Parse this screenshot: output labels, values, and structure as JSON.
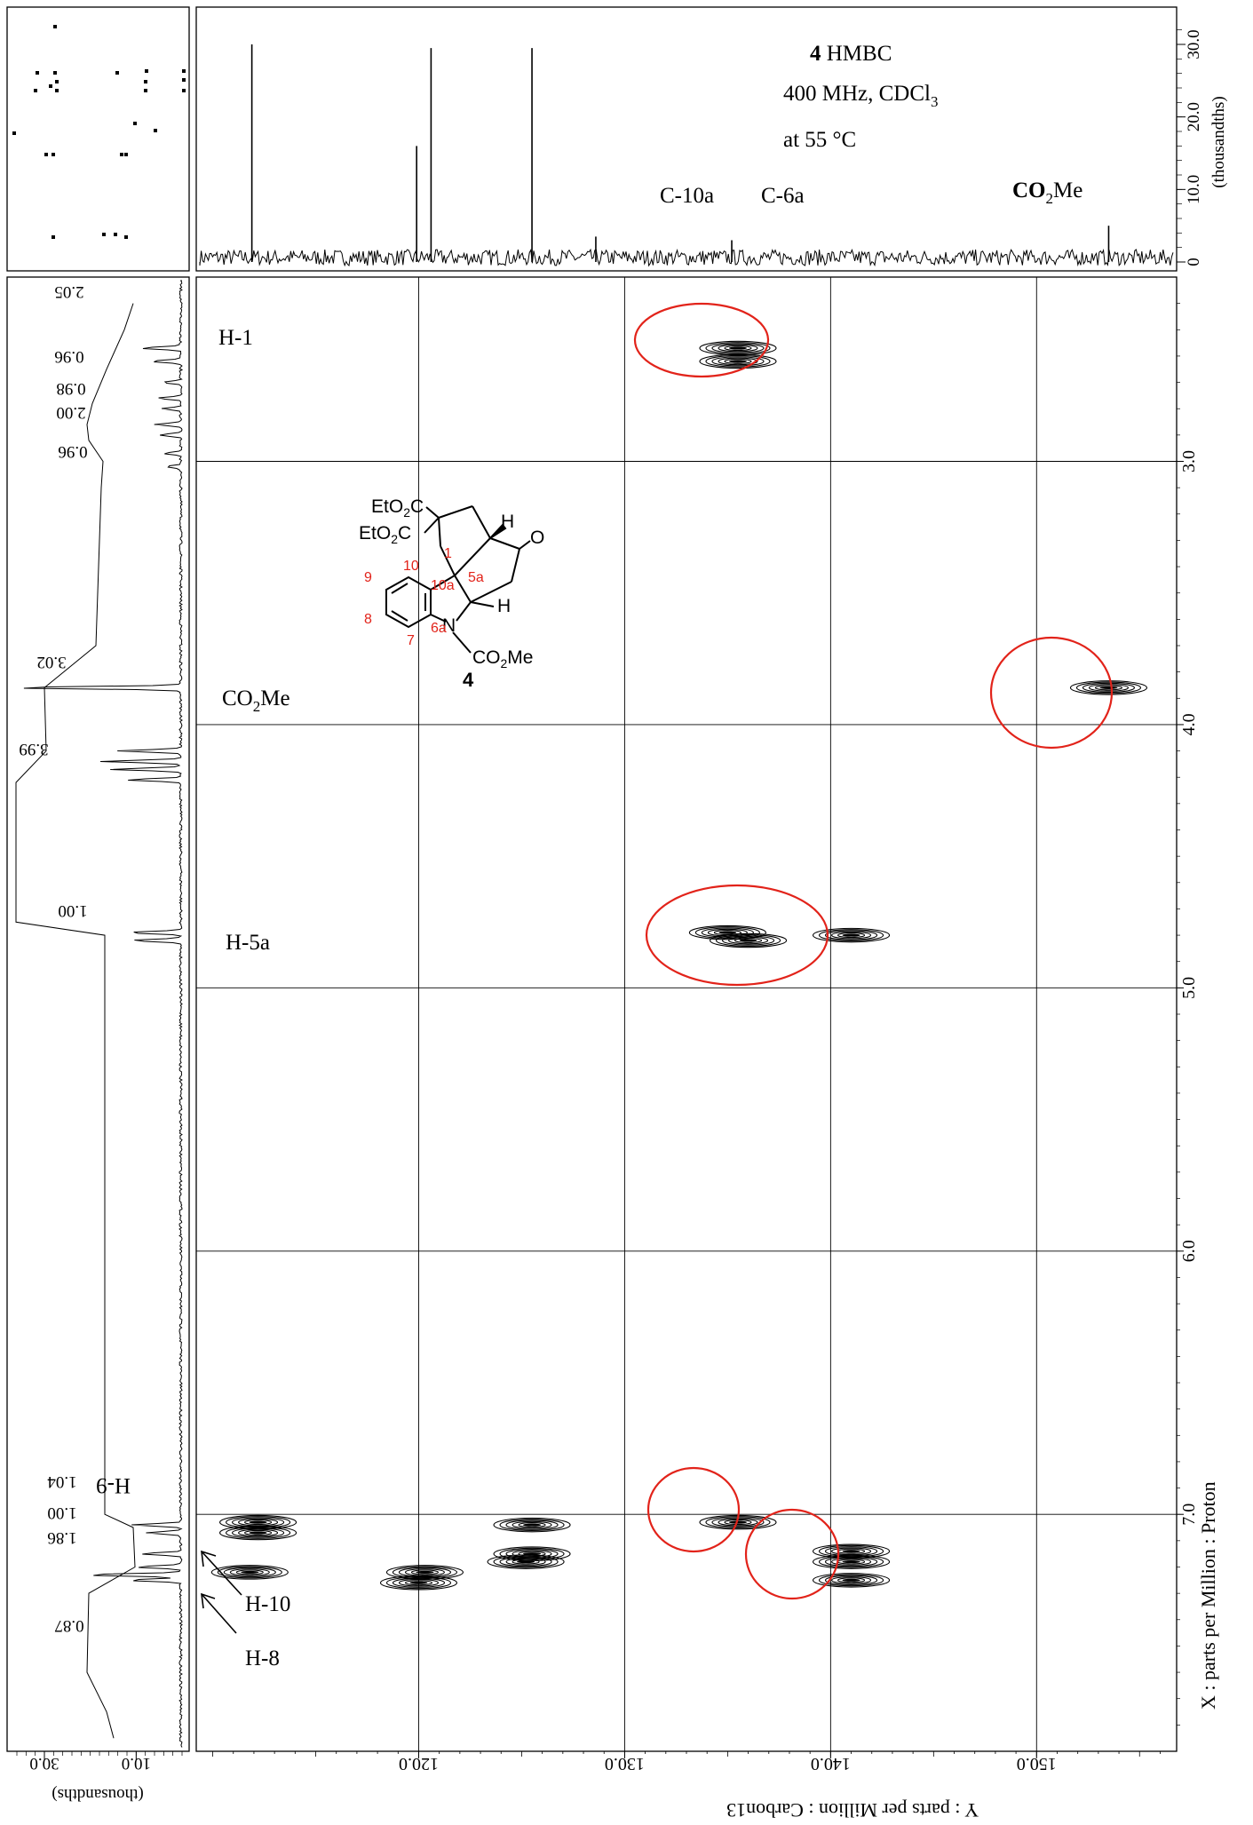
{
  "chart_data": {
    "type": "heatmap",
    "title": {
      "compound_number": "4",
      "experiment": "HMBC",
      "field": "400 MHz, CDCl",
      "field_sub": "3",
      "temperature": "at 55 °C"
    },
    "x_axis": {
      "label": "Y : parts per Million : Carbon13",
      "ticks": [
        {
          "value": 120,
          "label": "120.0"
        },
        {
          "value": 130,
          "label": "130.0"
        },
        {
          "value": 140,
          "label": "140.0"
        },
        {
          "value": 150,
          "label": "150.0"
        }
      ],
      "range": [
        109.2,
        156.8
      ],
      "reversed_print": true
    },
    "y_axis": {
      "label": "X : parts per Million : Proton",
      "ticks": [
        {
          "value": 3.0,
          "label": "3.0"
        },
        {
          "value": 4.0,
          "label": "4.0"
        },
        {
          "value": 5.0,
          "label": "5.0"
        },
        {
          "value": 6.0,
          "label": "6.0"
        },
        {
          "value": 7.0,
          "label": "7.0"
        }
      ],
      "range": [
        2.3,
        7.9
      ]
    },
    "top_projection": {
      "axis_label": "(thousandths)",
      "ticks": [
        {
          "value": 0,
          "label": "0"
        },
        {
          "value": 10,
          "label": "10.0"
        },
        {
          "value": 20,
          "label": "20.0"
        },
        {
          "value": 30,
          "label": "30.0"
        }
      ],
      "peaks": [
        {
          "x": 111.9,
          "height": 30
        },
        {
          "x": 119.9,
          "height": 16
        },
        {
          "x": 120.6,
          "height": 29.5
        },
        {
          "x": 125.5,
          "height": 29.5
        },
        {
          "x": 128.6,
          "height": 3.5
        },
        {
          "x": 135.2,
          "height": 3
        },
        {
          "x": 153.5,
          "height": 5
        }
      ],
      "annotations": [
        "C-10a",
        "C-6a",
        "CO",
        "2",
        "Me"
      ]
    },
    "left_projection": {
      "axis_label": "(thousandths)",
      "ticks": [
        {
          "value": 10,
          "label": "10.0"
        },
        {
          "value": 30,
          "label": "30.0"
        }
      ],
      "integrals": [
        "2.05",
        "0.96",
        "0.98",
        "2.00",
        "0.96",
        "3.02",
        "3.99",
        "1.00",
        "1.04",
        "1.00",
        "1.86",
        "0.87"
      ]
    },
    "row_labels": [
      "H-1",
      "CO",
      "2",
      "Me",
      "H-5a",
      "H-9",
      "H-10",
      "H-8"
    ],
    "cross_peaks": [
      {
        "x": 135.5,
        "y": 2.57,
        "circled": true
      },
      {
        "x": 135.5,
        "y": 2.62
      },
      {
        "x": 153.5,
        "y": 3.86,
        "circled": true
      },
      {
        "x": 135.0,
        "y": 4.79,
        "circled": true
      },
      {
        "x": 136.0,
        "y": 4.82
      },
      {
        "x": 141.0,
        "y": 4.8
      },
      {
        "x": 112.2,
        "y": 7.03
      },
      {
        "x": 112.2,
        "y": 7.07
      },
      {
        "x": 111.8,
        "y": 7.22
      },
      {
        "x": 120.3,
        "y": 7.22
      },
      {
        "x": 120.0,
        "y": 7.26
      },
      {
        "x": 125.5,
        "y": 7.04
      },
      {
        "x": 125.5,
        "y": 7.15
      },
      {
        "x": 125.2,
        "y": 7.18
      },
      {
        "x": 135.5,
        "y": 7.03,
        "circled": true
      },
      {
        "x": 141.0,
        "y": 7.14,
        "circled": true
      },
      {
        "x": 141.0,
        "y": 7.18
      },
      {
        "x": 141.0,
        "y": 7.25
      }
    ],
    "structure": {
      "compound": "4",
      "groups": [
        "EtO",
        "2",
        "C",
        "O",
        "N",
        "CO",
        "Me",
        "H"
      ],
      "atom_numbers": [
        "1",
        "5a",
        "10a",
        "10",
        "9",
        "8",
        "7",
        "6a"
      ]
    }
  }
}
